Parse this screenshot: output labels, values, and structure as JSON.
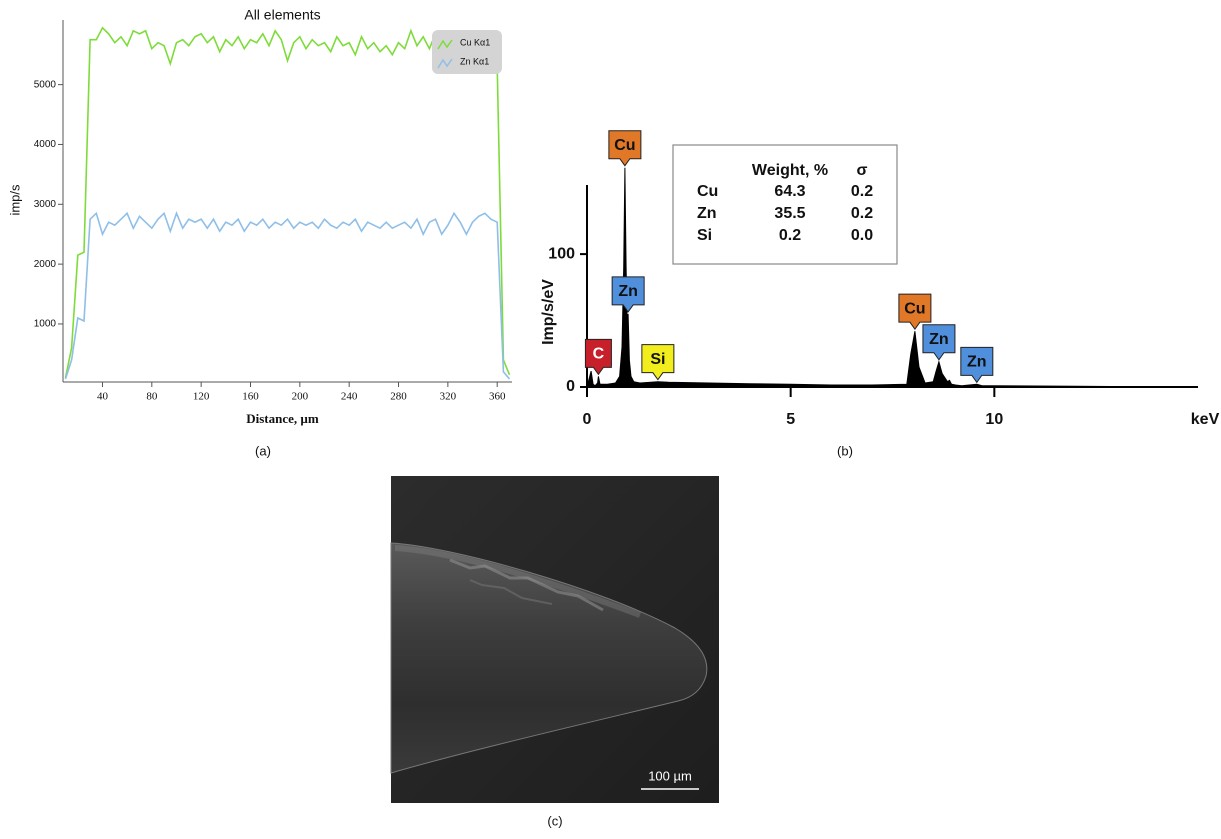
{
  "chart_data": [
    {
      "type": "line",
      "title": "All elements",
      "ylabel": "imp/s",
      "xlabel": "Distance, µm",
      "caption": "(a)",
      "x": [
        10,
        15,
        20,
        25,
        30,
        35,
        40,
        45,
        50,
        55,
        60,
        65,
        70,
        75,
        80,
        85,
        90,
        95,
        100,
        105,
        110,
        115,
        120,
        125,
        130,
        135,
        140,
        145,
        150,
        155,
        160,
        165,
        170,
        175,
        180,
        185,
        190,
        195,
        200,
        205,
        210,
        215,
        220,
        225,
        230,
        235,
        240,
        245,
        250,
        255,
        260,
        265,
        270,
        275,
        280,
        285,
        290,
        295,
        300,
        305,
        310,
        315,
        320,
        325,
        330,
        335,
        340,
        345,
        350,
        355,
        360,
        365,
        370
      ],
      "series": [
        {
          "name": "Cu Kα1",
          "color": "#7ddc3a",
          "values": [
            100,
            600,
            2150,
            2200,
            5750,
            5750,
            5950,
            5850,
            5700,
            5800,
            5650,
            5900,
            5850,
            5900,
            5600,
            5700,
            5650,
            5350,
            5700,
            5750,
            5650,
            5800,
            5850,
            5700,
            5800,
            5550,
            5750,
            5650,
            5800,
            5600,
            5750,
            5700,
            5850,
            5650,
            5900,
            5750,
            5400,
            5700,
            5800,
            5600,
            5750,
            5650,
            5700,
            5550,
            5800,
            5650,
            5700,
            5500,
            5800,
            5600,
            5700,
            5550,
            5650,
            5500,
            5700,
            5600,
            5900,
            5650,
            5800,
            5600,
            5850,
            5550,
            5750,
            5650,
            5800,
            5700,
            5750,
            5650,
            5800,
            5700,
            5300,
            400,
            150
          ]
        },
        {
          "name": "Zn Kα1",
          "color": "#8fbfe8",
          "values": [
            80,
            400,
            1100,
            1050,
            2750,
            2850,
            2500,
            2700,
            2650,
            2750,
            2850,
            2600,
            2800,
            2700,
            2600,
            2750,
            2850,
            2550,
            2850,
            2600,
            2750,
            2700,
            2750,
            2600,
            2750,
            2550,
            2700,
            2650,
            2750,
            2550,
            2700,
            2650,
            2750,
            2600,
            2700,
            2650,
            2750,
            2600,
            2700,
            2650,
            2700,
            2600,
            2750,
            2650,
            2600,
            2700,
            2650,
            2750,
            2550,
            2700,
            2650,
            2600,
            2700,
            2600,
            2650,
            2700,
            2600,
            2750,
            2500,
            2700,
            2750,
            2500,
            2650,
            2850,
            2700,
            2500,
            2700,
            2800,
            2850,
            2750,
            2700,
            200,
            80
          ]
        }
      ],
      "xlim": [
        8,
        372
      ],
      "xticks": [
        40,
        80,
        120,
        160,
        200,
        240,
        280,
        320,
        360
      ],
      "ylim": [
        30,
        6080
      ],
      "yticks": [
        1000,
        2000,
        3000,
        4000,
        5000
      ],
      "legend": "upper right"
    },
    {
      "type": "area",
      "ylabel": "Imp/s/eV",
      "xlabel": "keV",
      "caption": "(b)",
      "color": "#000000",
      "x": [
        0,
        0.1,
        0.15,
        0.2,
        0.26,
        0.28,
        0.32,
        0.5,
        0.7,
        0.8,
        0.86,
        0.9,
        0.93,
        0.96,
        0.99,
        1.01,
        1.04,
        1.08,
        1.15,
        1.3,
        1.74,
        2,
        3,
        4,
        5,
        6,
        7,
        7.85,
        7.95,
        8.05,
        8.15,
        8.3,
        8.5,
        8.57,
        8.64,
        8.72,
        8.85,
        8.9,
        8.95,
        9.05,
        9.2,
        9.57,
        9.7,
        10,
        12,
        15
      ],
      "values": [
        0,
        12,
        2,
        1,
        3,
        8,
        2,
        2,
        3,
        8,
        30,
        90,
        165,
        90,
        45,
        55,
        20,
        8,
        4,
        3,
        4,
        3.5,
        3,
        2.5,
        2,
        1.5,
        1.5,
        2,
        25,
        42,
        15,
        3,
        4,
        12,
        19,
        10,
        4,
        5,
        2,
        1.5,
        1,
        2,
        1,
        1,
        0.5,
        0
      ],
      "xlim": [
        0,
        15
      ],
      "xticks": [
        0,
        5,
        10
      ],
      "ylim": [
        0,
        152
      ],
      "yticks": [
        0,
        100
      ],
      "annotations": [
        {
          "text": "C",
          "x": 0.28,
          "y": 8,
          "color": "#c8202a"
        },
        {
          "text": "Cu",
          "x": 0.93,
          "y": 165,
          "color": "#e07828"
        },
        {
          "text": "Zn",
          "x": 1.01,
          "y": 55,
          "color": "#4f8fdc"
        },
        {
          "text": "Si",
          "x": 1.74,
          "y": 4,
          "color": "#f2ee1e"
        },
        {
          "text": "Cu",
          "x": 8.05,
          "y": 42,
          "color": "#e07828"
        },
        {
          "text": "Zn",
          "x": 8.64,
          "y": 19,
          "color": "#4f8fdc"
        },
        {
          "text": "Zn",
          "x": 9.57,
          "y": 2,
          "color": "#4f8fdc"
        }
      ],
      "table": {
        "columns": [
          "Weight, %",
          "σ"
        ],
        "rows": [
          [
            "Cu",
            "64.3",
            "0.2"
          ],
          [
            "Zn",
            "35.5",
            "0.2"
          ],
          [
            "Si",
            "0.2",
            "0.0"
          ]
        ]
      }
    }
  ],
  "image_panel": {
    "scale_bar": "100 µm",
    "caption": "(c)"
  }
}
